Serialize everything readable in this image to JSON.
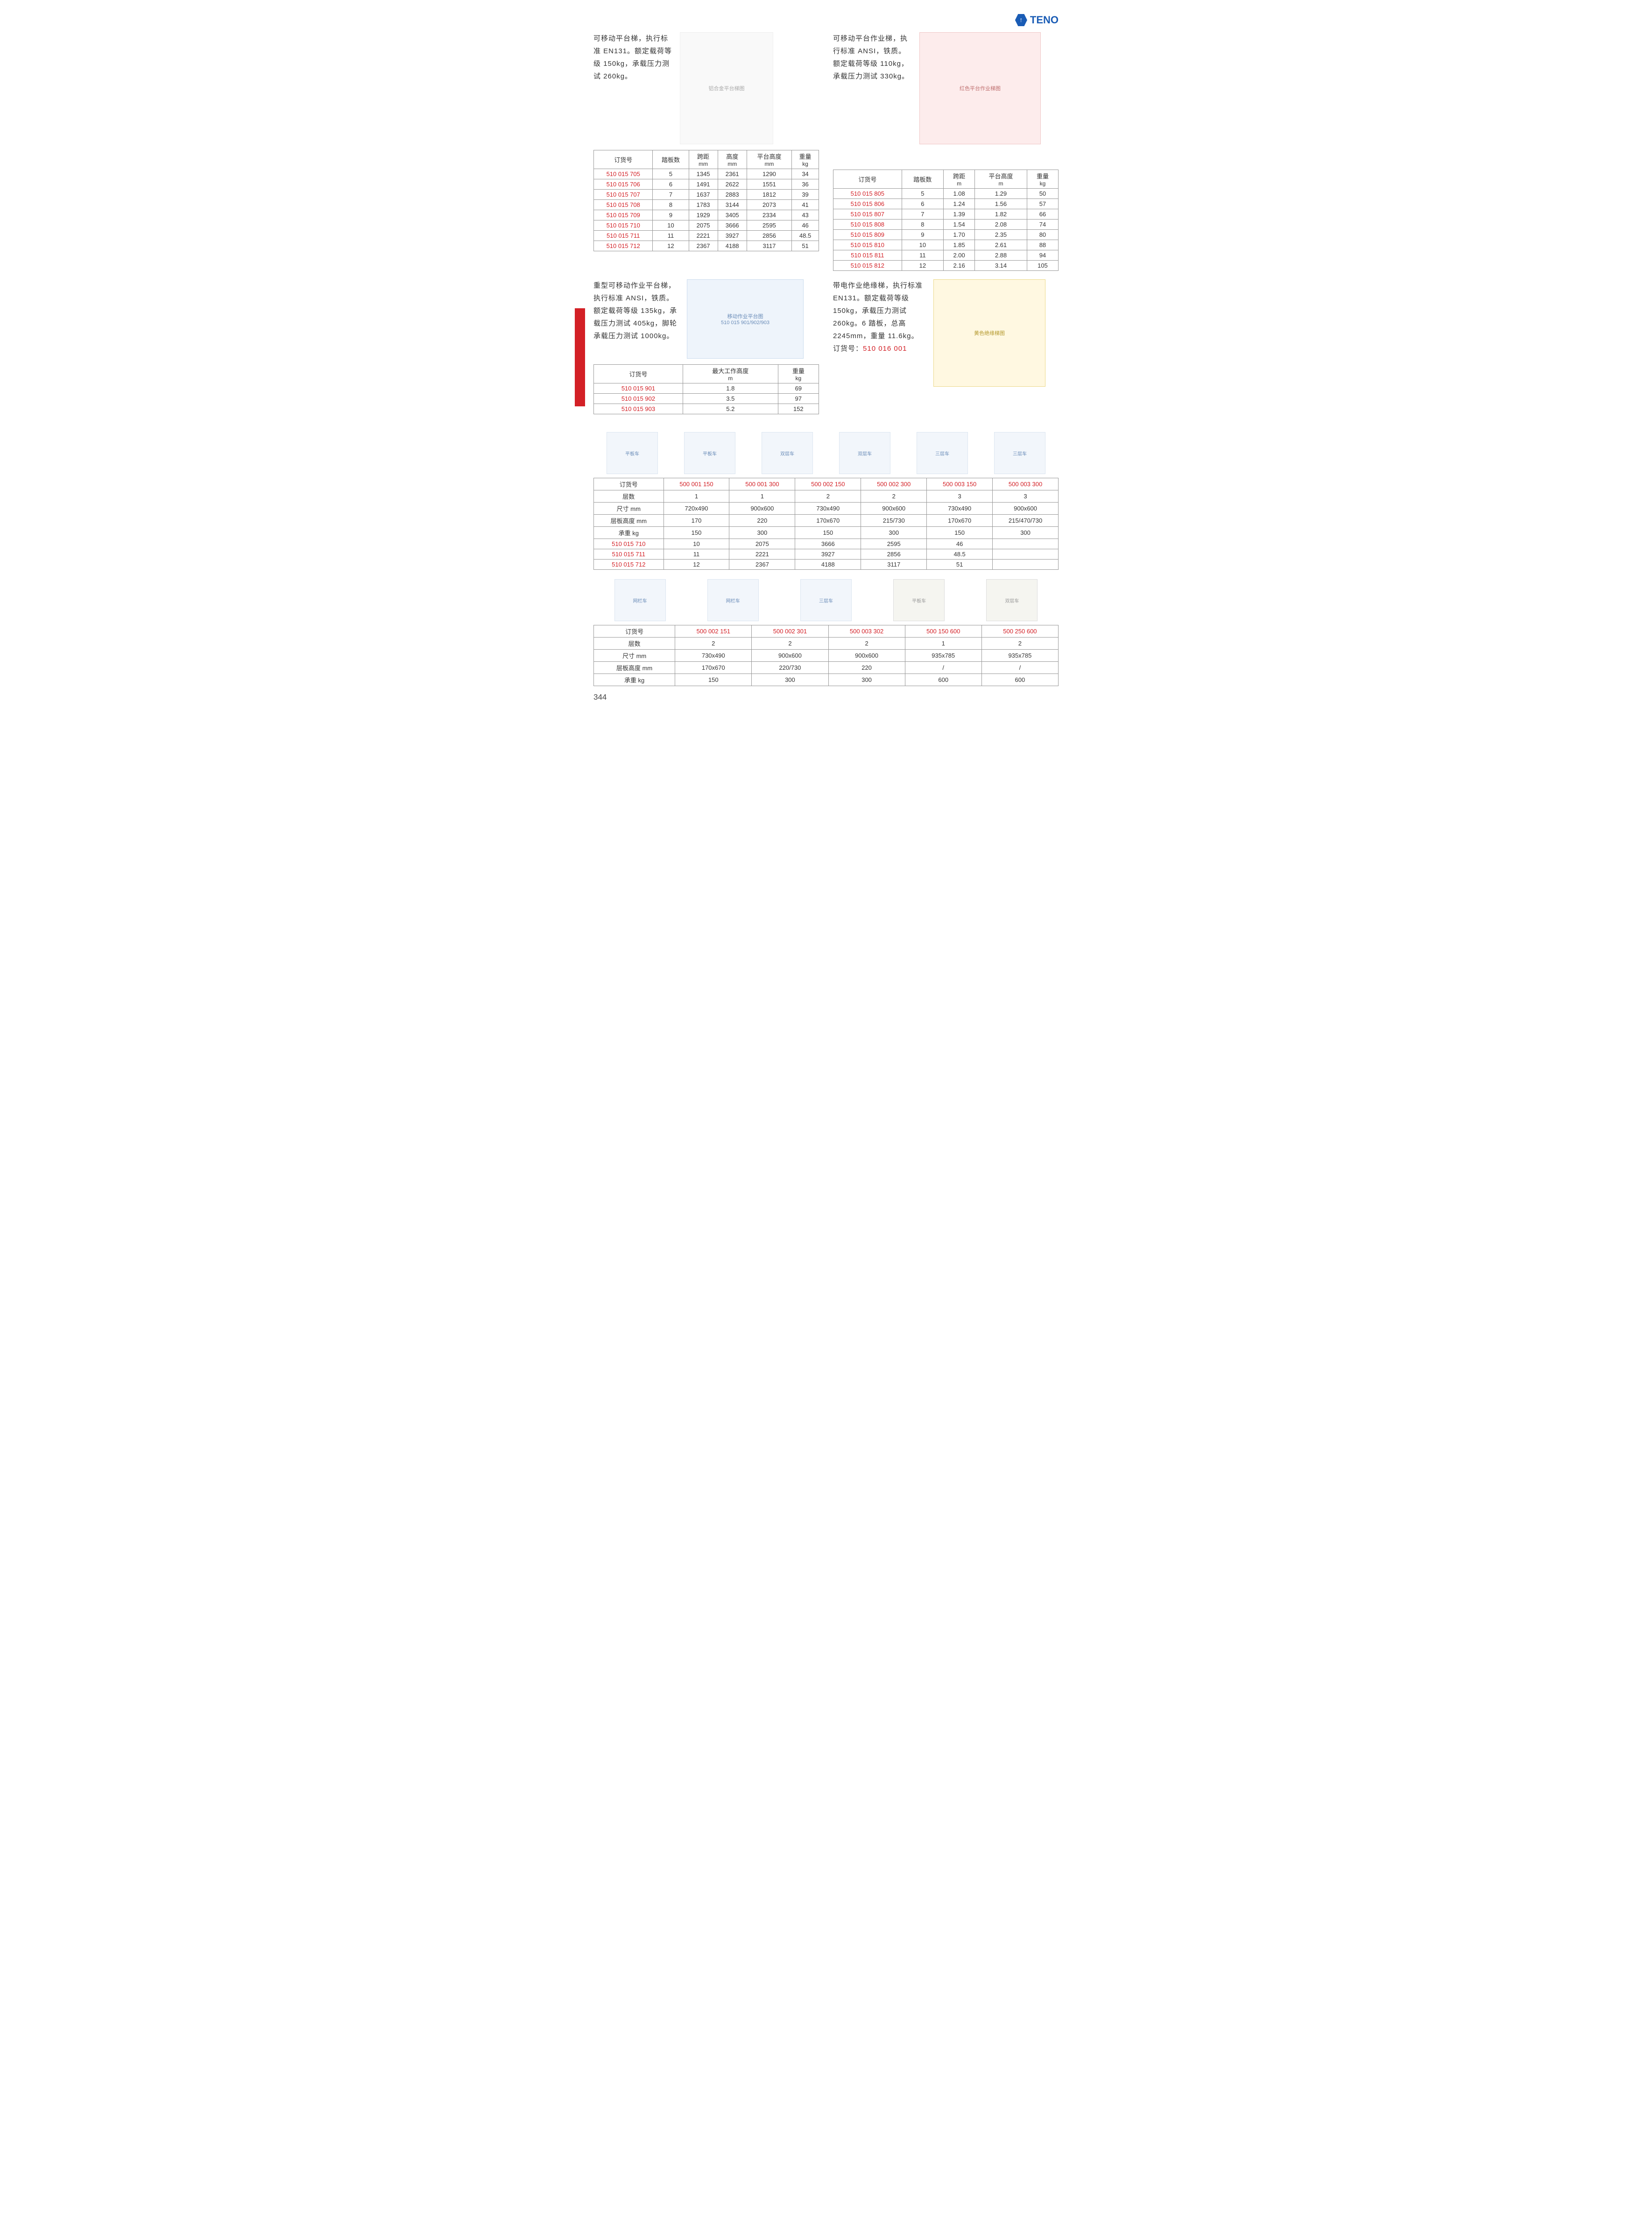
{
  "brand": "TENO",
  "page_number": "344",
  "section1": {
    "left": {
      "desc": "可移动平台梯，执行标准 EN131。额定载荷等级 150kg，承载压力测试 260kg。",
      "table": {
        "headers": [
          "订货号",
          "踏板数",
          "跨距",
          "高度",
          "平台高度",
          "重量"
        ],
        "subheaders": [
          "",
          "",
          "mm",
          "mm",
          "mm",
          "kg"
        ],
        "rows": [
          [
            "510 015 705",
            "5",
            "1345",
            "2361",
            "1290",
            "34"
          ],
          [
            "510 015 706",
            "6",
            "1491",
            "2622",
            "1551",
            "36"
          ],
          [
            "510 015 707",
            "7",
            "1637",
            "2883",
            "1812",
            "39"
          ],
          [
            "510 015 708",
            "8",
            "1783",
            "3144",
            "2073",
            "41"
          ],
          [
            "510 015 709",
            "9",
            "1929",
            "3405",
            "2334",
            "43"
          ],
          [
            "510 015 710",
            "10",
            "2075",
            "3666",
            "2595",
            "46"
          ],
          [
            "510 015 711",
            "11",
            "2221",
            "3927",
            "2856",
            "48.5"
          ],
          [
            "510 015 712",
            "12",
            "2367",
            "4188",
            "3117",
            "51"
          ]
        ]
      }
    },
    "right": {
      "desc": "可移动平台作业梯，执行标准 ANSI，铁质。额定载荷等级 110kg，承载压力测试 330kg。",
      "table": {
        "headers": [
          "订货号",
          "踏板数",
          "跨距",
          "平台高度",
          "重量"
        ],
        "subheaders": [
          "",
          "",
          "m",
          "m",
          "kg"
        ],
        "rows": [
          [
            "510 015 805",
            "5",
            "1.08",
            "1.29",
            "50"
          ],
          [
            "510 015 806",
            "6",
            "1.24",
            "1.56",
            "57"
          ],
          [
            "510 015 807",
            "7",
            "1.39",
            "1.82",
            "66"
          ],
          [
            "510 015 808",
            "8",
            "1.54",
            "2.08",
            "74"
          ],
          [
            "510 015 809",
            "9",
            "1.70",
            "2.35",
            "80"
          ],
          [
            "510 015 810",
            "10",
            "1.85",
            "2.61",
            "88"
          ],
          [
            "510 015 811",
            "11",
            "2.00",
            "2.88",
            "94"
          ],
          [
            "510 015 812",
            "12",
            "2.16",
            "3.14",
            "105"
          ]
        ]
      }
    }
  },
  "section2": {
    "left": {
      "desc": "重型可移动作业平台梯，执行标准 ANSI，铁质。额定载荷等级 135kg，承载压力测试 405kg，脚轮承载压力测试 1000kg。",
      "table": {
        "headers": [
          "订货号",
          "最大工作高度",
          "重量"
        ],
        "subheaders": [
          "",
          "m",
          "kg"
        ],
        "rows": [
          [
            "510 015 901",
            "1.8",
            "69"
          ],
          [
            "510 015 902",
            "3.5",
            "97"
          ],
          [
            "510 015 903",
            "5.2",
            "152"
          ]
        ]
      }
    },
    "right": {
      "desc_main": "带电作业绝缘梯，执行标准 EN131。额定载荷等级 150kg，承载压力测试 260kg。6 踏板，总高 2245mm，重量 11.6kg。",
      "desc_order_label": "订货号：",
      "desc_order_no": "510 016 001"
    }
  },
  "carts_a": {
    "row_labels": [
      "订货号",
      "层数",
      "尺寸 mm",
      "层板高度 mm",
      "承重 kg",
      "510 015 710",
      "510 015 711",
      "510 015 712"
    ],
    "cols": [
      [
        "500 001 150",
        "1",
        "720x490",
        "170",
        "150",
        "10",
        "11",
        "12"
      ],
      [
        "500 001 300",
        "1",
        "900x600",
        "220",
        "300",
        "2075",
        "2221",
        "2367"
      ],
      [
        "500 002 150",
        "2",
        "730x490",
        "170x670",
        "150",
        "3666",
        "3927",
        "4188"
      ],
      [
        "500 002 300",
        "2",
        "900x600",
        "215/730",
        "300",
        "2595",
        "2856",
        "3117"
      ],
      [
        "500 003 150",
        "3",
        "730x490",
        "170x670",
        "150",
        "46",
        "48.5",
        "51"
      ],
      [
        "500 003 300",
        "3",
        "900x600",
        "215/470/730",
        "300",
        "",
        "",
        ""
      ]
    ]
  },
  "carts_b": {
    "row_labels": [
      "订货号",
      "层数",
      "尺寸 mm",
      "层板高度 mm",
      "承重 kg"
    ],
    "cols": [
      [
        "500 002 151",
        "2",
        "730x490",
        "170x670",
        "150"
      ],
      [
        "500 002 301",
        "2",
        "900x600",
        "220/730",
        "300"
      ],
      [
        "500 003 302",
        "2",
        "900x600",
        "220",
        "300"
      ],
      [
        "500 150 600",
        "1",
        "935x785",
        "/",
        "600"
      ],
      [
        "500 250 600",
        "2",
        "935x785",
        "/",
        "600"
      ]
    ]
  }
}
